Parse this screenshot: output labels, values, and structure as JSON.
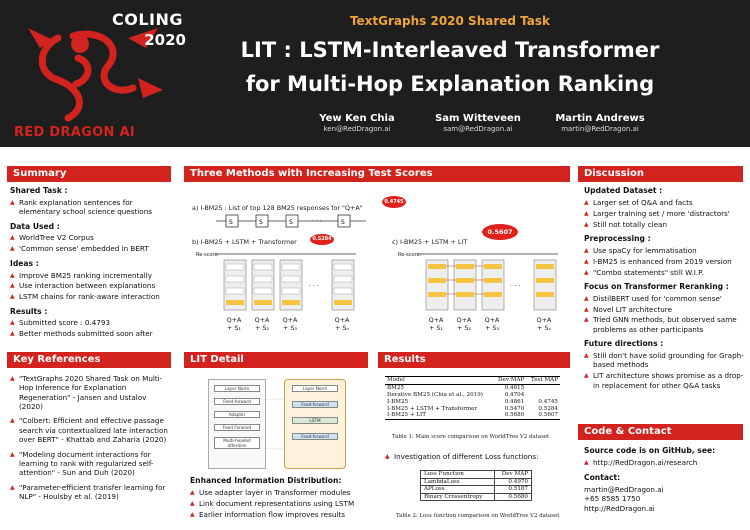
{
  "header": {
    "conference_logo_word": "COLING",
    "conference_logo_year": "2020",
    "org_name": "RED DRAGON AI",
    "event": "TextGraphs 2020 Shared Task",
    "title_line1": "LIT : LSTM-Interleaved Transformer",
    "title_line2": "for Multi-Hop Explanation Ranking",
    "authors": [
      {
        "name": "Yew Ken Chia",
        "email": "ken@RedDragon.ai"
      },
      {
        "name": "Sam Witteveen",
        "email": "sam@RedDragon.ai"
      },
      {
        "name": "Martin Andrews",
        "email": "martin@RedDragon.ai"
      }
    ]
  },
  "summary": {
    "title": "Summary",
    "sections": [
      {
        "heading": "Shared Task :",
        "items": [
          "Rank explanation sentences for elementary school science questions"
        ]
      },
      {
        "heading": "Data Used :",
        "items": [
          "WorldTree V2 Corpus",
          "'Common sense' embedded in BERT"
        ]
      },
      {
        "heading": "Ideas :",
        "items": [
          "Improve BM25 ranking incrementally",
          "Use interaction between explanations",
          "LSTM chains for rank-aware interaction"
        ]
      },
      {
        "heading": "Results :",
        "items": [
          "Submitted score : 0.4793",
          "Better methods submitted soon after"
        ]
      }
    ]
  },
  "references": {
    "title": "Key References",
    "items": [
      "\"TextGraphs 2020 Shared Task on Multi-Hop Inference for Explanation Regeneration\" - Jansen and Ustalov (2020)",
      "\"Colbert: Efficient and effective passage search via contextualized late interaction over BERT\" - Khattab and Zaharia (2020)",
      "\"Modeling document interactions for learning to rank with regularized self-attention\" - Sun and Duh (2020)",
      "\"Parameter-efficient transfer learning for NLP\" - Houlsby et al. (2019)"
    ]
  },
  "methods": {
    "title": "Three Methods with Increasing Test Scores",
    "a_label": "a)  I-BM25 : List of top 128 BM25 responses for \"Q+A\"",
    "a_score": "0.4745",
    "b_label": "b)  I-BM25 + LSTM + Transformer",
    "b_score": "0.5284",
    "c_label": "c)  I-BM25 + LSTM + LIT",
    "c_score": "0.5607",
    "rescore": "Re-score:",
    "s": "S",
    "qa": "Q+A",
    "plus_s": [
      "+ S₁",
      "+ S₂",
      "+ S₃",
      "+ Sₙ"
    ],
    "dots": "· · ·"
  },
  "lit_detail": {
    "title": "LIT Detail",
    "fig_left": [
      "Layer Norm",
      "Feed-forward",
      "Adapter",
      "Feed Forward",
      "Multi-headed attention"
    ],
    "fig_right": [
      "Layer Norm",
      "Feed-forward",
      "LSTM",
      "Feed-forward"
    ],
    "heading": "Enhanced Information Distribution:",
    "items": [
      "Use adapter layer in Transformer modules",
      "Link document representations using LSTM",
      "Earlier information flow improves results"
    ]
  },
  "results": {
    "title": "Results",
    "table1": {
      "headers": [
        "Model",
        "Dev MAP",
        "Test MAP"
      ],
      "rows": [
        [
          "BM25",
          "0.4615",
          ""
        ],
        [
          "Iterative BM25 (Chia et al., 2019)",
          "0.4704",
          ""
        ],
        [
          "I-BM25",
          "0.4861",
          "0.4745"
        ],
        [
          "I-BM25 + LSTM + Transformer",
          "0.5470",
          "0.5284"
        ],
        [
          "I-BM25 + LIT",
          "0.5680",
          "0.5607"
        ]
      ],
      "caption": "Table 1: Main score comparison on WorldTree V2 dataset"
    },
    "loss_intro": "Investigation of different Loss functions:",
    "table2": {
      "headers": [
        "Loss Function",
        "Dev MAP"
      ],
      "rows": [
        [
          "LambdaLoss",
          "0.4970"
        ],
        [
          "APLoss",
          "0.5187"
        ],
        [
          "Binary Crossentropy",
          "0.5680"
        ]
      ],
      "caption": "Table 2: Loss function comparison on WorldTree V2 dataset"
    }
  },
  "discussion": {
    "title": "Discussion",
    "sections": [
      {
        "heading": "Updated Dataset :",
        "items": [
          "Larger set of Q&A and facts",
          "Larger training set / more 'distractors'",
          "Still not totally clean"
        ]
      },
      {
        "heading": "Preprocessing :",
        "items": [
          "Use spaCy for lemmatisation",
          "I-BM25 is enhanced from 2019 version",
          "\"Combo statements\" still W.I.P."
        ]
      },
      {
        "heading": "Focus on Transformer Reranking :",
        "items": [
          "DistilBERT used for 'common sense'",
          "Novel LIT architecture",
          "Tried GNN methods, but observed same problems as other participants"
        ]
      },
      {
        "heading": "Future directions :",
        "items": [
          "Still don't have solid grounding for Graph-based methods",
          "LIT architecture shows promise as a drop-in replacement for other Q&A tasks"
        ]
      }
    ]
  },
  "contact": {
    "title": "Code & Contact",
    "code_heading": "Source code is on GitHub, see:",
    "code_link": "http://RedDragon.ai/research",
    "contact_heading": "Contact:",
    "email": "martin@RedDragon.ai",
    "phone": "+65 8585 1750",
    "site": "http://RedDragon.ai"
  },
  "colors": {
    "accent": "#d2231f",
    "header_bg": "#1e1e1e",
    "event": "#f0a43a"
  }
}
